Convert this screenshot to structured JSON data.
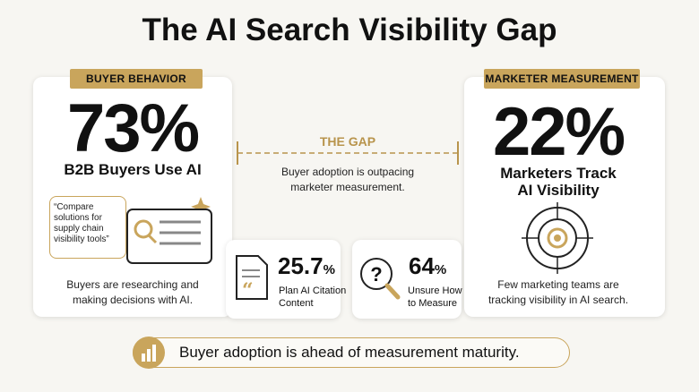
{
  "title": "The AI Search Visibility Gap",
  "buyer_card": {
    "badge": "BUYER BEHAVIOR",
    "stat": "73%",
    "label": "B2B Buyers Use AI",
    "quote": [
      "“Compare",
      "solutions for",
      "supply chain",
      "visibility tools”"
    ],
    "caption": [
      "Buyers are researching and",
      "making decisions with AI."
    ]
  },
  "gap": {
    "title": "THE GAP",
    "text": [
      "Buyer adoption is outpacing",
      "marketer measurement."
    ]
  },
  "stat_cards": [
    {
      "value": "25.7",
      "unit": "%",
      "label": [
        "Plan AI Citation",
        "Content"
      ]
    },
    {
      "value": "64",
      "unit": "%",
      "label": [
        "Unsure How",
        "to Measure"
      ]
    }
  ],
  "marketer_card": {
    "badge": "MARKETER MEASUREMENT",
    "stat": "22%",
    "label": [
      "Marketers Track",
      "AI Visibility"
    ],
    "caption": [
      "Few marketing teams are",
      "tracking visibility in AI search."
    ]
  },
  "footer": {
    "text": "Buyer adoption is ahead of measurement maturity."
  }
}
